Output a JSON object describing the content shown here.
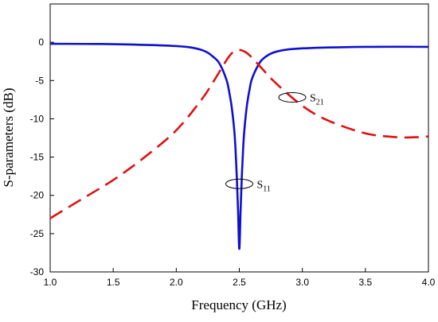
{
  "chart_data": {
    "type": "line",
    "title": "",
    "xlabel": "Frequency (GHz)",
    "ylabel": "S-parameters (dB)",
    "xlim": [
      1.0,
      4.0
    ],
    "ylim": [
      -30,
      5
    ],
    "x_ticks": [
      "1.0",
      "1.5",
      "2.0",
      "2.5",
      "3.0",
      "3.5",
      "4.0"
    ],
    "y_ticks": [
      "0",
      "-5",
      "-10",
      "-15",
      "-20",
      "-25",
      "-30"
    ],
    "grid": false,
    "legend": "none",
    "series": [
      {
        "name": "S11",
        "color": "#1010d0",
        "dash": "solid",
        "x": [
          1.0,
          1.5,
          2.0,
          2.2,
          2.3,
          2.35,
          2.4,
          2.42,
          2.44,
          2.46,
          2.47,
          2.48,
          2.49,
          2.5,
          2.51,
          2.52,
          2.53,
          2.54,
          2.56,
          2.58,
          2.6,
          2.65,
          2.7,
          2.8,
          3.0,
          3.5,
          4.0
        ],
        "y": [
          -0.2,
          -0.25,
          -0.5,
          -1.0,
          -2.0,
          -3.0,
          -5.0,
          -6.5,
          -8.5,
          -11.5,
          -14,
          -17.5,
          -22,
          -27,
          -22,
          -17.5,
          -14,
          -11.5,
          -8.3,
          -6.3,
          -4.8,
          -3.0,
          -2.0,
          -1.2,
          -0.8,
          -0.6,
          -0.6
        ]
      },
      {
        "name": "S21",
        "color": "#e01010",
        "dash": "dashed",
        "x": [
          1.0,
          1.25,
          1.5,
          1.75,
          2.0,
          2.2,
          2.3,
          2.4,
          2.45,
          2.5,
          2.55,
          2.6,
          2.7,
          2.8,
          3.0,
          3.2,
          3.5,
          3.75,
          3.9,
          4.0
        ],
        "y": [
          -23,
          -20.5,
          -18,
          -15,
          -11.5,
          -7.5,
          -5.0,
          -2.3,
          -1.3,
          -1.0,
          -1.3,
          -2.0,
          -3.8,
          -5.5,
          -8.3,
          -10.2,
          -11.9,
          -12.4,
          -12.4,
          -12.3
        ]
      }
    ],
    "annotations": [
      {
        "label": "S",
        "sub": "11",
        "x": 2.5,
        "y": -18.5
      },
      {
        "label": "S",
        "sub": "21",
        "x": 2.92,
        "y": -7.2
      }
    ]
  }
}
